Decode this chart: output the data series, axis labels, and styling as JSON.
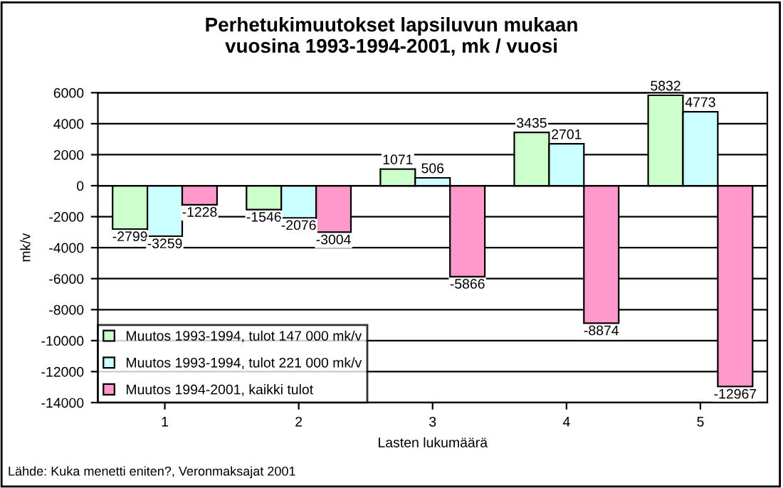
{
  "chart_data": {
    "type": "bar",
    "title": "Perhetukimuutokset lapsiluvun mukaan\nvuosina 1993-1994-2001, mk / vuosi",
    "xlabel": "Lasten lukumäärä",
    "ylabel": "mk/v",
    "categories": [
      "1",
      "2",
      "3",
      "4",
      "5"
    ],
    "series": [
      {
        "name": "Muutos 1993-1994, tulot 147 000 mk/v",
        "color": "#ccffcc",
        "values": [
          -2799,
          -1546,
          1071,
          3435,
          5832
        ]
      },
      {
        "name": "Muutos 1993-1994, tulot 221 000 mk/v",
        "color": "#ccffff",
        "values": [
          -3259,
          -2076,
          506,
          2701,
          4773
        ]
      },
      {
        "name": "Muutos 1994-2001, kaikki tulot",
        "color": "#ff99cc",
        "values": [
          -1228,
          -3004,
          -5866,
          -8874,
          -12967
        ]
      }
    ],
    "ylim": [
      -14000,
      6000
    ],
    "yticks": [
      -14000,
      -12000,
      -10000,
      -8000,
      -6000,
      -4000,
      -2000,
      0,
      2000,
      4000,
      6000
    ],
    "grid": "y",
    "legend": "bottom left",
    "data_labels": true,
    "annotations": [
      "Lähde: Kuka menetti eniten?, Veronmaksajat 2001"
    ]
  }
}
